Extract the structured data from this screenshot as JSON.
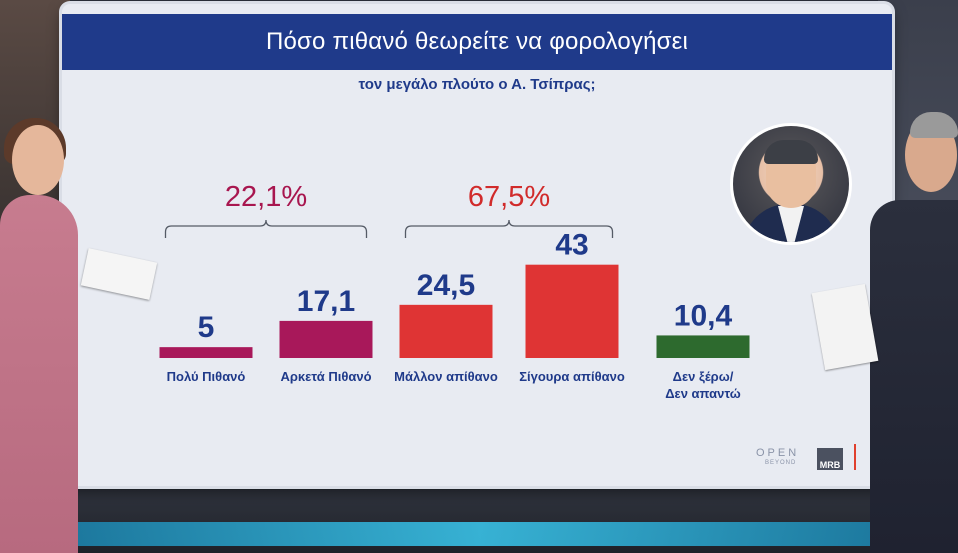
{
  "chart_data": {
    "type": "bar",
    "title": "Πόσο πιθανό θεωρείτε να φορολογήσει",
    "subtitle": "τον μεγάλο πλούτο ο Α. Τσίπρας;",
    "categories": [
      "Πολύ Πιθανό",
      "Αρκετά Πιθανό",
      "Μάλλον απίθανο",
      "Σίγουρα απίθανο",
      "Δεν ξέρω/ Δεν απαντώ"
    ],
    "category_lines": [
      [
        "Πολύ Πιθανό"
      ],
      [
        "Αρκετά Πιθανό"
      ],
      [
        "Μάλλον απίθανο"
      ],
      [
        "Σίγουρα απίθανο"
      ],
      [
        "Δεν ξέρω/",
        "Δεν απαντώ"
      ]
    ],
    "values": [
      5,
      17.1,
      24.5,
      43,
      10.4
    ],
    "value_labels": [
      "5",
      "17,1",
      "24,5",
      "43",
      "10,4"
    ],
    "colors": [
      "#a8185a",
      "#a8185a",
      "#df3434",
      "#df3434",
      "#2d6a2e"
    ],
    "groups": [
      {
        "label": "22,1%",
        "categories": [
          0,
          1
        ],
        "color": "#a8164f"
      },
      {
        "label": "67,5%",
        "categories": [
          2,
          3
        ],
        "color": "#d12b2b"
      }
    ],
    "grid": false
  },
  "brand": {
    "channel": "OPEN",
    "channel_sub": "BEYOND",
    "pollster": "MRB"
  },
  "colors": {
    "title_bar": "#1f3a8a",
    "screen_bg": "#e8ebf2"
  }
}
